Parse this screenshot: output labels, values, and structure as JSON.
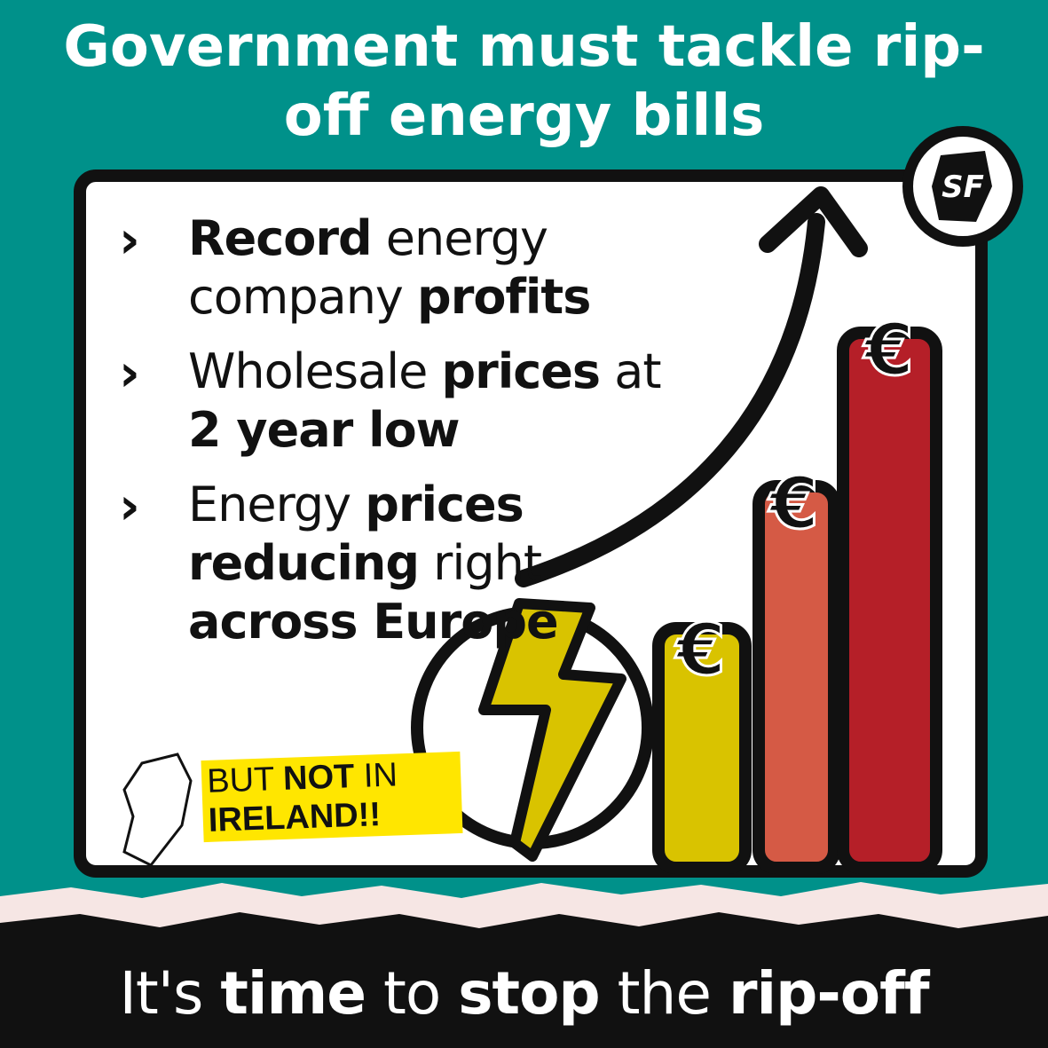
{
  "header": {
    "title": "Government must tackle rip-off energy bills"
  },
  "logo": {
    "text": "SF"
  },
  "bullets": [
    {
      "segments": [
        {
          "text": "Record",
          "bold": true
        },
        {
          "text": " energy company ",
          "bold": false
        },
        {
          "text": "profits",
          "bold": true
        }
      ]
    },
    {
      "segments": [
        {
          "text": "Wholesale ",
          "bold": false
        },
        {
          "text": "prices",
          "bold": true
        },
        {
          "text": " at ",
          "bold": false
        },
        {
          "text": "2 year low",
          "bold": true
        }
      ]
    },
    {
      "segments": [
        {
          "text": "Energy ",
          "bold": false
        },
        {
          "text": "prices reducing",
          "bold": true
        },
        {
          "text": " right ",
          "bold": false
        },
        {
          "text": "across Europe",
          "bold": true
        }
      ]
    }
  ],
  "stamp": {
    "segments": [
      {
        "text": "BUT ",
        "bold": false
      },
      {
        "text": "NOT",
        "bold": true
      },
      {
        "text": " IN ",
        "bold": false
      },
      {
        "text": "IRELAND!!",
        "bold": true
      }
    ]
  },
  "bar_symbols": [
    "€",
    "€",
    "€"
  ],
  "footer": {
    "segments": [
      {
        "text": "It's ",
        "bold": false
      },
      {
        "text": "time",
        "bold": true
      },
      {
        "text": " to ",
        "bold": false
      },
      {
        "text": "stop",
        "bold": true
      },
      {
        "text": " the ",
        "bold": false
      },
      {
        "text": "rip-off",
        "bold": true
      }
    ]
  }
}
